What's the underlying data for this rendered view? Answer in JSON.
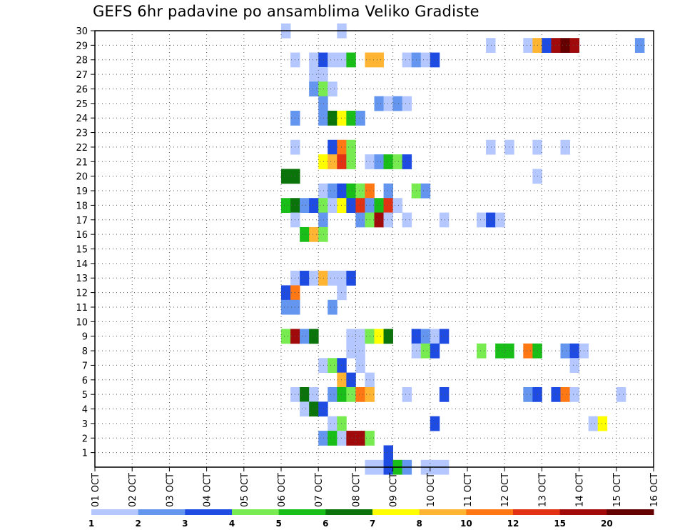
{
  "title": "GEFS 6hr padavine po ansamblima Veliko Gradiste",
  "chart_data": {
    "type": "heatmap",
    "title": "GEFS 6hr padavine po ansamblima Veliko Gradiste",
    "x_tick_labels": [
      "01 OCT",
      "02 OCT",
      "03 OCT",
      "04 OCT",
      "05 OCT",
      "06 OCT",
      "07 OCT",
      "08 OCT",
      "09 OCT",
      "10 OCT",
      "11 OCT",
      "12 OCT",
      "13 OCT",
      "14 OCT",
      "15 OCT",
      "16 OCT"
    ],
    "y_tick_labels": [
      "1",
      "2",
      "3",
      "4",
      "5",
      "6",
      "7",
      "8",
      "9",
      "10",
      "11",
      "12",
      "13",
      "14",
      "15",
      "16",
      "17",
      "18",
      "19",
      "20",
      "21",
      "22",
      "23",
      "24",
      "25",
      "26",
      "27",
      "28",
      "29",
      "30"
    ],
    "xlim_days": [
      1,
      16
    ],
    "ylim_members": [
      0,
      30
    ],
    "time_step_hours": 6,
    "grid": true,
    "legend_position": "bottom",
    "colorbar": {
      "labels": [
        "1",
        "2",
        "3",
        "4",
        "5",
        "6",
        "7",
        "8",
        "10",
        "12",
        "15",
        "20"
      ],
      "colors": [
        "#b4c8ff",
        "#6496f0",
        "#1e4be1",
        "#78eb50",
        "#19be19",
        "#0a730a",
        "#ffff00",
        "#ffb432",
        "#ff7814",
        "#e13214",
        "#a00a0a",
        "#640000"
      ]
    },
    "cells": [
      {
        "member": 30,
        "day": 6.0,
        "cat": 1
      },
      {
        "member": 30,
        "day": 7.5,
        "cat": 1
      },
      {
        "member": 29,
        "day": 11.5,
        "cat": 1
      },
      {
        "member": 29,
        "day": 12.5,
        "cat": 1
      },
      {
        "member": 29,
        "day": 12.75,
        "cat": 8
      },
      {
        "member": 29,
        "day": 13.0,
        "cat": 3
      },
      {
        "member": 29,
        "day": 13.25,
        "cat": 11
      },
      {
        "member": 29,
        "day": 13.5,
        "cat": 12
      },
      {
        "member": 29,
        "day": 13.75,
        "cat": 11
      },
      {
        "member": 29,
        "day": 15.5,
        "cat": 2
      },
      {
        "member": 28,
        "day": 6.25,
        "cat": 1
      },
      {
        "member": 28,
        "day": 6.75,
        "cat": 1
      },
      {
        "member": 28,
        "day": 7.0,
        "cat": 3
      },
      {
        "member": 28,
        "day": 7.25,
        "cat": 1
      },
      {
        "member": 28,
        "day": 7.5,
        "cat": 1
      },
      {
        "member": 28,
        "day": 7.75,
        "cat": 5
      },
      {
        "member": 28,
        "day": 8.25,
        "cat": 8
      },
      {
        "member": 28,
        "day": 8.5,
        "cat": 8
      },
      {
        "member": 28,
        "day": 9.25,
        "cat": 1
      },
      {
        "member": 28,
        "day": 9.5,
        "cat": 2
      },
      {
        "member": 28,
        "day": 9.75,
        "cat": 1
      },
      {
        "member": 28,
        "day": 10.0,
        "cat": 3
      },
      {
        "member": 27,
        "day": 6.75,
        "cat": 1
      },
      {
        "member": 27,
        "day": 7.0,
        "cat": 1
      },
      {
        "member": 26,
        "day": 6.75,
        "cat": 2
      },
      {
        "member": 26,
        "day": 7.0,
        "cat": 4
      },
      {
        "member": 26,
        "day": 7.25,
        "cat": 1
      },
      {
        "member": 25,
        "day": 7.0,
        "cat": 2
      },
      {
        "member": 25,
        "day": 8.5,
        "cat": 2
      },
      {
        "member": 25,
        "day": 8.75,
        "cat": 1
      },
      {
        "member": 25,
        "day": 9.0,
        "cat": 2
      },
      {
        "member": 25,
        "day": 9.25,
        "cat": 1
      },
      {
        "member": 24,
        "day": 6.25,
        "cat": 2
      },
      {
        "member": 24,
        "day": 7.0,
        "cat": 2
      },
      {
        "member": 24,
        "day": 7.25,
        "cat": 6
      },
      {
        "member": 24,
        "day": 7.5,
        "cat": 7
      },
      {
        "member": 24,
        "day": 7.75,
        "cat": 5
      },
      {
        "member": 24,
        "day": 8.0,
        "cat": 2
      },
      {
        "member": 22,
        "day": 6.25,
        "cat": 1
      },
      {
        "member": 22,
        "day": 7.25,
        "cat": 3
      },
      {
        "member": 22,
        "day": 7.5,
        "cat": 9
      },
      {
        "member": 22,
        "day": 7.75,
        "cat": 4
      },
      {
        "member": 22,
        "day": 11.5,
        "cat": 1
      },
      {
        "member": 22,
        "day": 12.0,
        "cat": 1
      },
      {
        "member": 22,
        "day": 12.75,
        "cat": 1
      },
      {
        "member": 22,
        "day": 13.5,
        "cat": 1
      },
      {
        "member": 21,
        "day": 7.0,
        "cat": 7
      },
      {
        "member": 21,
        "day": 7.25,
        "cat": 8
      },
      {
        "member": 21,
        "day": 7.5,
        "cat": 10
      },
      {
        "member": 21,
        "day": 7.75,
        "cat": 4
      },
      {
        "member": 21,
        "day": 8.25,
        "cat": 1
      },
      {
        "member": 21,
        "day": 8.5,
        "cat": 2
      },
      {
        "member": 21,
        "day": 8.75,
        "cat": 5
      },
      {
        "member": 21,
        "day": 9.0,
        "cat": 4
      },
      {
        "member": 21,
        "day": 9.25,
        "cat": 3
      },
      {
        "member": 20,
        "day": 6.0,
        "cat": 6
      },
      {
        "member": 20,
        "day": 6.25,
        "cat": 6
      },
      {
        "member": 20,
        "day": 12.75,
        "cat": 1
      },
      {
        "member": 19,
        "day": 7.0,
        "cat": 1
      },
      {
        "member": 19,
        "day": 7.25,
        "cat": 2
      },
      {
        "member": 19,
        "day": 7.5,
        "cat": 3
      },
      {
        "member": 19,
        "day": 7.75,
        "cat": 5
      },
      {
        "member": 19,
        "day": 8.0,
        "cat": 4
      },
      {
        "member": 19,
        "day": 8.25,
        "cat": 9
      },
      {
        "member": 19,
        "day": 8.75,
        "cat": 2
      },
      {
        "member": 19,
        "day": 9.5,
        "cat": 4
      },
      {
        "member": 19,
        "day": 9.75,
        "cat": 2
      },
      {
        "member": 18,
        "day": 6.0,
        "cat": 5
      },
      {
        "member": 18,
        "day": 6.25,
        "cat": 6
      },
      {
        "member": 18,
        "day": 6.5,
        "cat": 2
      },
      {
        "member": 18,
        "day": 6.75,
        "cat": 3
      },
      {
        "member": 18,
        "day": 7.0,
        "cat": 4
      },
      {
        "member": 18,
        "day": 7.25,
        "cat": 1
      },
      {
        "member": 18,
        "day": 7.5,
        "cat": 7
      },
      {
        "member": 18,
        "day": 7.75,
        "cat": 3
      },
      {
        "member": 18,
        "day": 8.0,
        "cat": 10
      },
      {
        "member": 18,
        "day": 8.25,
        "cat": 2
      },
      {
        "member": 18,
        "day": 8.5,
        "cat": 5
      },
      {
        "member": 18,
        "day": 8.75,
        "cat": 10
      },
      {
        "member": 18,
        "day": 9.0,
        "cat": 1
      },
      {
        "member": 17,
        "day": 6.25,
        "cat": 1
      },
      {
        "member": 17,
        "day": 7.0,
        "cat": 2
      },
      {
        "member": 17,
        "day": 8.0,
        "cat": 2
      },
      {
        "member": 17,
        "day": 8.25,
        "cat": 4
      },
      {
        "member": 17,
        "day": 8.5,
        "cat": 11
      },
      {
        "member": 17,
        "day": 8.75,
        "cat": 1
      },
      {
        "member": 17,
        "day": 9.25,
        "cat": 1
      },
      {
        "member": 17,
        "day": 10.25,
        "cat": 1
      },
      {
        "member": 17,
        "day": 11.25,
        "cat": 1
      },
      {
        "member": 17,
        "day": 11.5,
        "cat": 3
      },
      {
        "member": 17,
        "day": 11.75,
        "cat": 1
      },
      {
        "member": 16,
        "day": 6.5,
        "cat": 5
      },
      {
        "member": 16,
        "day": 6.75,
        "cat": 8
      },
      {
        "member": 16,
        "day": 7.0,
        "cat": 4
      },
      {
        "member": 13,
        "day": 6.25,
        "cat": 1
      },
      {
        "member": 13,
        "day": 6.5,
        "cat": 3
      },
      {
        "member": 13,
        "day": 6.75,
        "cat": 1
      },
      {
        "member": 13,
        "day": 7.0,
        "cat": 8
      },
      {
        "member": 13,
        "day": 7.25,
        "cat": 1
      },
      {
        "member": 13,
        "day": 7.5,
        "cat": 1
      },
      {
        "member": 13,
        "day": 7.75,
        "cat": 3
      },
      {
        "member": 12,
        "day": 6.0,
        "cat": 3
      },
      {
        "member": 12,
        "day": 6.25,
        "cat": 9
      },
      {
        "member": 12,
        "day": 7.5,
        "cat": 1
      },
      {
        "member": 11,
        "day": 6.0,
        "cat": 2
      },
      {
        "member": 11,
        "day": 6.25,
        "cat": 2
      },
      {
        "member": 11,
        "day": 7.25,
        "cat": 2
      },
      {
        "member": 9,
        "day": 6.0,
        "cat": 4
      },
      {
        "member": 9,
        "day": 6.25,
        "cat": 11
      },
      {
        "member": 9,
        "day": 6.5,
        "cat": 2
      },
      {
        "member": 9,
        "day": 6.75,
        "cat": 6
      },
      {
        "member": 9,
        "day": 7.75,
        "cat": 1
      },
      {
        "member": 9,
        "day": 8.0,
        "cat": 1
      },
      {
        "member": 9,
        "day": 8.25,
        "cat": 4
      },
      {
        "member": 9,
        "day": 8.5,
        "cat": 7
      },
      {
        "member": 9,
        "day": 8.75,
        "cat": 6
      },
      {
        "member": 9,
        "day": 9.5,
        "cat": 3
      },
      {
        "member": 9,
        "day": 9.75,
        "cat": 2
      },
      {
        "member": 9,
        "day": 10.0,
        "cat": 1
      },
      {
        "member": 9,
        "day": 10.25,
        "cat": 3
      },
      {
        "member": 8,
        "day": 7.75,
        "cat": 1
      },
      {
        "member": 8,
        "day": 8.0,
        "cat": 1
      },
      {
        "member": 8,
        "day": 9.5,
        "cat": 1
      },
      {
        "member": 8,
        "day": 9.75,
        "cat": 4
      },
      {
        "member": 8,
        "day": 10.0,
        "cat": 3
      },
      {
        "member": 8,
        "day": 11.25,
        "cat": 4
      },
      {
        "member": 8,
        "day": 11.75,
        "cat": 5
      },
      {
        "member": 8,
        "day": 12.0,
        "cat": 5
      },
      {
        "member": 8,
        "day": 12.5,
        "cat": 9
      },
      {
        "member": 8,
        "day": 12.75,
        "cat": 5
      },
      {
        "member": 8,
        "day": 13.5,
        "cat": 2
      },
      {
        "member": 8,
        "day": 13.75,
        "cat": 3
      },
      {
        "member": 8,
        "day": 14.0,
        "cat": 1
      },
      {
        "member": 7,
        "day": 7.0,
        "cat": 1
      },
      {
        "member": 7,
        "day": 7.25,
        "cat": 4
      },
      {
        "member": 7,
        "day": 7.5,
        "cat": 3
      },
      {
        "member": 7,
        "day": 8.0,
        "cat": 1
      },
      {
        "member": 7,
        "day": 13.75,
        "cat": 1
      },
      {
        "member": 6,
        "day": 7.5,
        "cat": 8
      },
      {
        "member": 6,
        "day": 7.75,
        "cat": 3
      },
      {
        "member": 6,
        "day": 8.25,
        "cat": 1
      },
      {
        "member": 5,
        "day": 6.25,
        "cat": 1
      },
      {
        "member": 5,
        "day": 6.5,
        "cat": 6
      },
      {
        "member": 5,
        "day": 6.75,
        "cat": 1
      },
      {
        "member": 5,
        "day": 7.25,
        "cat": 2
      },
      {
        "member": 5,
        "day": 7.5,
        "cat": 5
      },
      {
        "member": 5,
        "day": 7.75,
        "cat": 4
      },
      {
        "member": 5,
        "day": 8.0,
        "cat": 9
      },
      {
        "member": 5,
        "day": 8.25,
        "cat": 8
      },
      {
        "member": 5,
        "day": 9.25,
        "cat": 1
      },
      {
        "member": 5,
        "day": 10.25,
        "cat": 3
      },
      {
        "member": 5,
        "day": 12.5,
        "cat": 2
      },
      {
        "member": 5,
        "day": 12.75,
        "cat": 3
      },
      {
        "member": 5,
        "day": 13.25,
        "cat": 3
      },
      {
        "member": 5,
        "day": 13.5,
        "cat": 9
      },
      {
        "member": 5,
        "day": 13.75,
        "cat": 1
      },
      {
        "member": 5,
        "day": 15.0,
        "cat": 1
      },
      {
        "member": 4,
        "day": 6.5,
        "cat": 1
      },
      {
        "member": 4,
        "day": 6.75,
        "cat": 6
      },
      {
        "member": 4,
        "day": 7.0,
        "cat": 3
      },
      {
        "member": 3,
        "day": 7.25,
        "cat": 1
      },
      {
        "member": 3,
        "day": 7.5,
        "cat": 4
      },
      {
        "member": 3,
        "day": 10.0,
        "cat": 3
      },
      {
        "member": 3,
        "day": 14.25,
        "cat": 1
      },
      {
        "member": 3,
        "day": 14.5,
        "cat": 7
      },
      {
        "member": 2,
        "day": 7.0,
        "cat": 2
      },
      {
        "member": 2,
        "day": 7.25,
        "cat": 5
      },
      {
        "member": 2,
        "day": 7.5,
        "cat": 1
      },
      {
        "member": 2,
        "day": 7.75,
        "cat": 11
      },
      {
        "member": 2,
        "day": 8.0,
        "cat": 11
      },
      {
        "member": 2,
        "day": 8.25,
        "cat": 4
      },
      {
        "member": 1,
        "day": 8.75,
        "cat": 3
      },
      {
        "member": 0,
        "day": 8.25,
        "cat": 1
      },
      {
        "member": 0,
        "day": 8.5,
        "cat": 1
      },
      {
        "member": 0,
        "day": 8.75,
        "cat": 3
      },
      {
        "member": 0,
        "day": 9.0,
        "cat": 5
      },
      {
        "member": 0,
        "day": 9.25,
        "cat": 2
      },
      {
        "member": 0,
        "day": 9.75,
        "cat": 1
      },
      {
        "member": 0,
        "day": 10.0,
        "cat": 1
      },
      {
        "member": 0,
        "day": 10.25,
        "cat": 1
      }
    ]
  }
}
